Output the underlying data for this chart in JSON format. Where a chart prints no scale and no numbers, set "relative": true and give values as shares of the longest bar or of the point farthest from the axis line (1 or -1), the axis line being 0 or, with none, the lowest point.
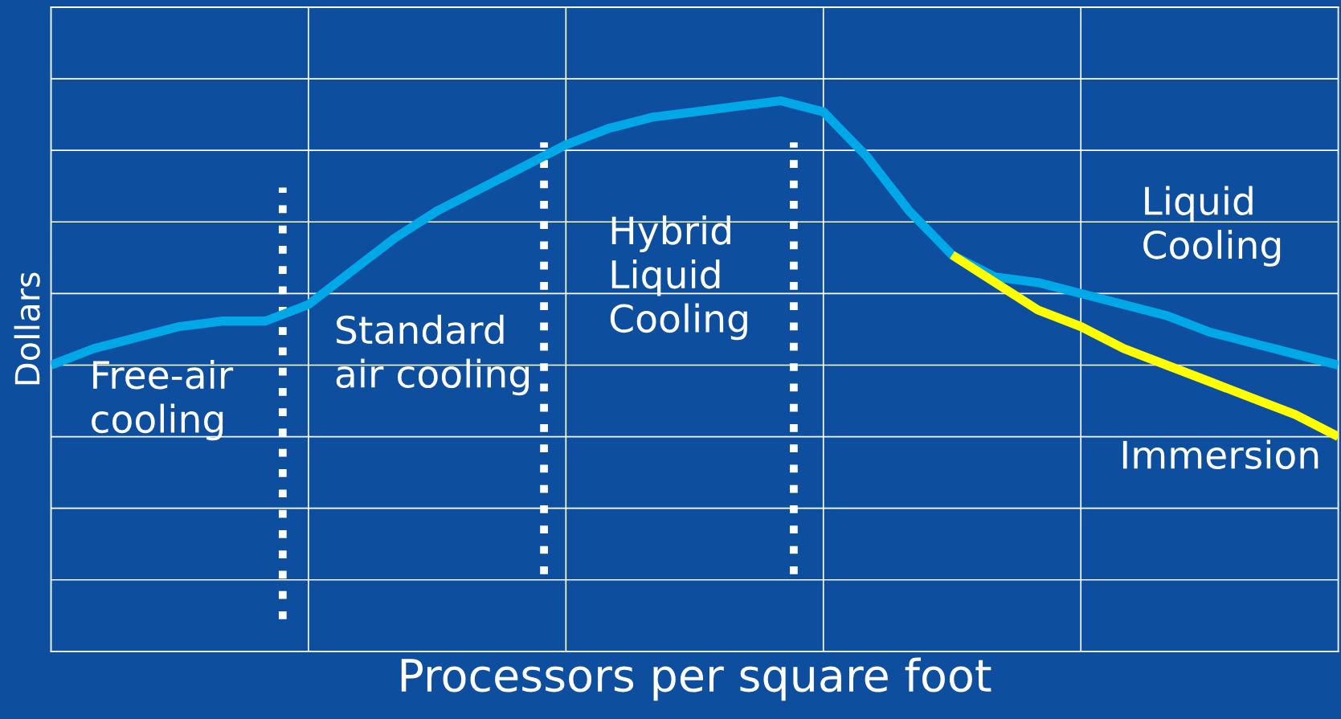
{
  "chart_data": {
    "type": "line",
    "relative": true,
    "xlabel": "Processors per square foot",
    "ylabel": "Dollars",
    "categories": [
      null,
      null,
      null,
      null,
      null,
      null,
      null,
      null,
      null,
      null,
      null,
      null,
      null,
      null,
      null,
      null,
      null,
      null,
      null,
      null,
      null,
      null,
      null,
      null,
      null,
      null,
      null,
      null,
      null,
      null,
      null
    ],
    "grid": true,
    "legend": false,
    "marker": "none",
    "line_style": "solid",
    "series": [
      {
        "color": "#00a8e8",
        "values": [
          0.52,
          0.55,
          0.57,
          0.59,
          0.6,
          0.6,
          0.63,
          0.69,
          0.75,
          0.8,
          0.84,
          0.88,
          0.92,
          0.95,
          0.97,
          0.98,
          0.99,
          1.0,
          0.98,
          0.9,
          0.8,
          0.72,
          0.68,
          0.67,
          0.65,
          0.63,
          0.61,
          0.58,
          0.56,
          0.54,
          0.52
        ]
      },
      {
        "color": "#ffff00",
        "values": [
          null,
          null,
          null,
          null,
          null,
          null,
          null,
          null,
          null,
          null,
          null,
          null,
          null,
          null,
          null,
          null,
          null,
          null,
          null,
          null,
          null,
          0.72,
          0.67,
          0.62,
          0.59,
          0.55,
          0.52,
          0.49,
          0.46,
          0.43,
          0.39
        ]
      }
    ],
    "annotations": [
      "Free-air\ncooling",
      "Standard\nair cooling",
      "Hybrid\nLiquid\nCooling",
      "Liquid\nCooling",
      "Immersion"
    ]
  }
}
